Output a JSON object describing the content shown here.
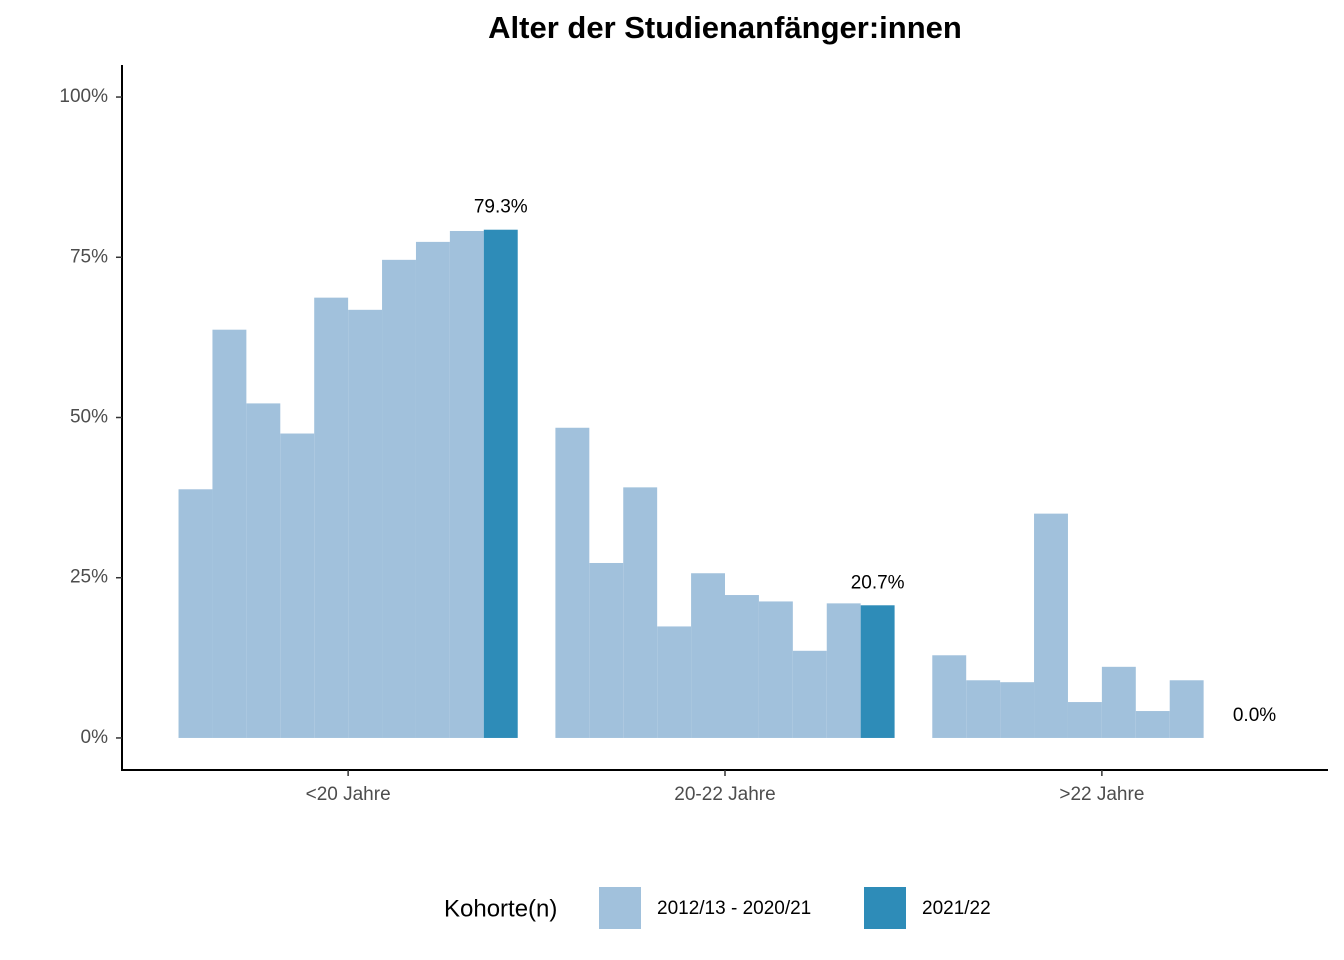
{
  "chart_data": {
    "type": "bar",
    "title": "Alter der Studienanfänger:innen",
    "categories": [
      "<20 Jahre",
      "20-22 Jahre",
      ">22 Jahre"
    ],
    "series": [
      {
        "name": "2012/13 - 2020/21",
        "color": "#a1c1dc",
        "values": [
          [
            38.8,
            63.7,
            52.2,
            47.5,
            68.7,
            66.8,
            74.6,
            77.4,
            79.1
          ],
          [
            48.4,
            27.3,
            39.1,
            17.4,
            25.7,
            22.3,
            21.3,
            13.6,
            21.0
          ],
          [
            12.9,
            9.0,
            8.7,
            35.0,
            5.6,
            11.1,
            4.2,
            9.0,
            null
          ]
        ]
      },
      {
        "name": "2021/22",
        "color": "#2e8cb8",
        "values": [
          79.3,
          20.7,
          0.0
        ],
        "value_labels": [
          "79.3%",
          "20.7%",
          "0.0%"
        ]
      }
    ],
    "ylim": [
      -5,
      105
    ],
    "yticks": [
      {
        "value": 0,
        "label": "0%"
      },
      {
        "value": 25,
        "label": "25%"
      },
      {
        "value": 50,
        "label": "50%"
      },
      {
        "value": 75,
        "label": "75%"
      },
      {
        "value": 100,
        "label": "100%"
      }
    ],
    "legend_title": "Kohorte(n)",
    "legend_position": "bottom",
    "grid": false
  }
}
